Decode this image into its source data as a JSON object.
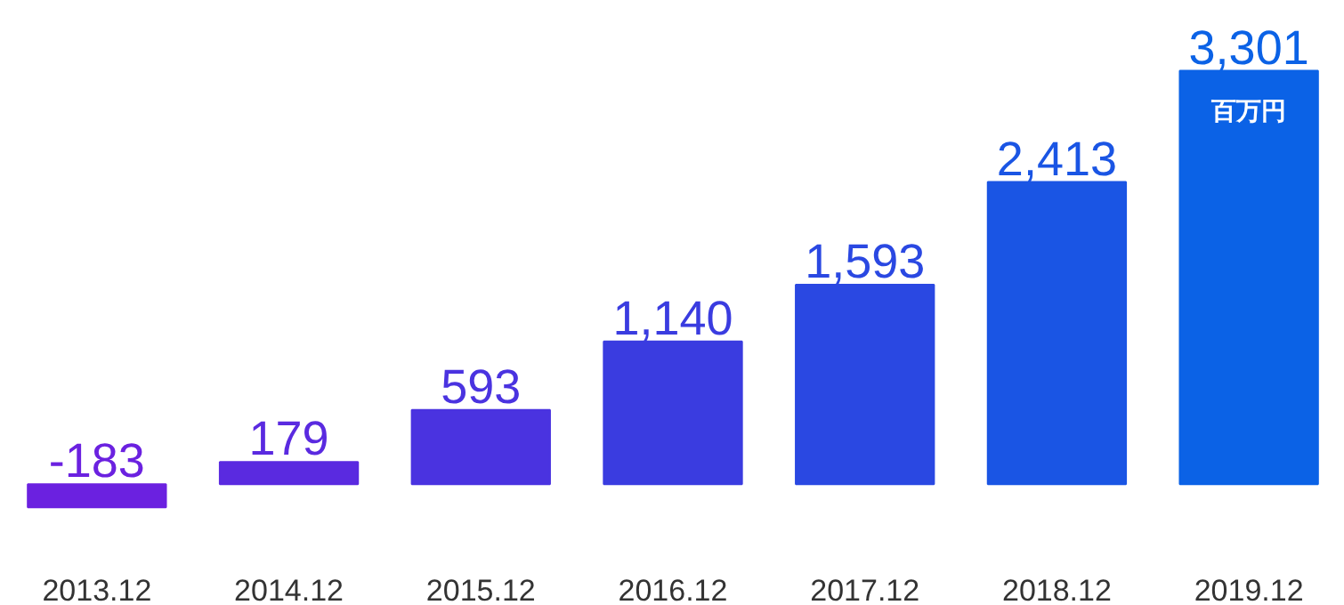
{
  "chart_data": {
    "type": "bar",
    "categories": [
      "2013.12",
      "2014.12",
      "2015.12",
      "2016.12",
      "2017.12",
      "2018.12",
      "2019.12"
    ],
    "values": [
      -183,
      179,
      593,
      1140,
      1593,
      2413,
      3301
    ],
    "value_labels": [
      "-183",
      "179",
      "593",
      "1,140",
      "1,593",
      "2,413",
      "3,301"
    ],
    "colors": [
      "#6b21e0",
      "#5a2ae0",
      "#4a33e0",
      "#3a3ce0",
      "#2a48e2",
      "#1a55e4",
      "#0b62e6"
    ],
    "annotations": [
      "百万円"
    ]
  }
}
